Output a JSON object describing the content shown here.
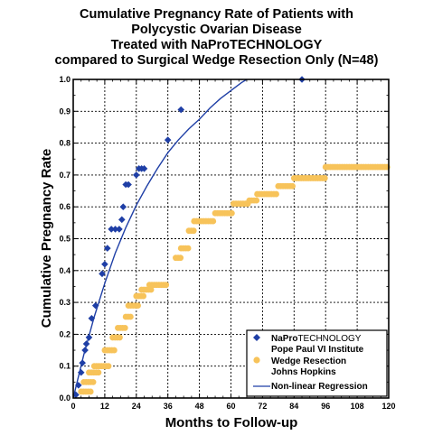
{
  "chart_data": {
    "type": "scatter",
    "title_lines": [
      "Cumulative Pregnancy Rate of Patients with",
      "Polycystic Ovarian Disease",
      "Treated with NaProTECHNOLOGY",
      "compared to Surgical Wedge Resection Only (N=48)"
    ],
    "xlabel": "Months to Follow-up",
    "ylabel": "Cumulative Pregnancy Rate",
    "xlim": [
      0,
      120
    ],
    "ylim": [
      0,
      1.0
    ],
    "x_ticks": [
      0,
      12,
      24,
      36,
      48,
      60,
      72,
      84,
      96,
      108,
      120
    ],
    "y_ticks": [
      0,
      0.1,
      0.2,
      0.3,
      0.4,
      0.5,
      0.6,
      0.7,
      0.8,
      0.9,
      1.0
    ],
    "y_tick_labels": [
      "0.0",
      "0.1",
      "0.2",
      "0.3",
      "0.4",
      "0.5",
      "0.6",
      "0.7",
      "0.8",
      "0.9",
      "1.0"
    ],
    "grid": true,
    "legend_position": "bottom-right",
    "colors": {
      "napro": "#1f3fa6",
      "wedge": "#f7c35a",
      "regression": "#1f3fa6"
    },
    "series": [
      {
        "name_bold": "NaPro",
        "name_rest": "TECHNOLOGY",
        "name_line2": "Pope Paul VI Institute",
        "marker": "diamond",
        "points": [
          [
            1,
            0.01
          ],
          [
            2,
            0.04
          ],
          [
            3,
            0.08
          ],
          [
            3.5,
            0.11
          ],
          [
            4.5,
            0.15
          ],
          [
            5,
            0.17
          ],
          [
            6,
            0.19
          ],
          [
            7,
            0.25
          ],
          [
            8.5,
            0.29
          ],
          [
            11,
            0.39
          ],
          [
            12,
            0.42
          ],
          [
            13,
            0.47
          ],
          [
            14.5,
            0.53
          ],
          [
            16,
            0.53
          ],
          [
            17.5,
            0.53
          ],
          [
            18.5,
            0.56
          ],
          [
            19,
            0.6
          ],
          [
            20,
            0.67
          ],
          [
            21,
            0.67
          ],
          [
            24,
            0.7
          ],
          [
            25,
            0.72
          ],
          [
            26,
            0.72
          ],
          [
            27,
            0.72
          ],
          [
            36,
            0.81
          ],
          [
            41,
            0.905
          ],
          [
            87,
            1.0
          ]
        ]
      },
      {
        "name": "Wedge Resection",
        "name_line2": "Johns Hopkins",
        "marker": "circle",
        "steps": [
          [
            3,
            7,
            0.02
          ],
          [
            4,
            8,
            0.05
          ],
          [
            6,
            10,
            0.08
          ],
          [
            8,
            14,
            0.1
          ],
          [
            12,
            16,
            0.15
          ],
          [
            15,
            18,
            0.19
          ],
          [
            17,
            20,
            0.22
          ],
          [
            20,
            22,
            0.255
          ],
          [
            21,
            25,
            0.29
          ],
          [
            24,
            27,
            0.32
          ],
          [
            26,
            30,
            0.34
          ],
          [
            29,
            36,
            0.355
          ],
          [
            39,
            41,
            0.44
          ],
          [
            41,
            44,
            0.47
          ],
          [
            44,
            46,
            0.525
          ],
          [
            46,
            54,
            0.555
          ],
          [
            54,
            61,
            0.58
          ],
          [
            61,
            67,
            0.61
          ],
          [
            67,
            70,
            0.62
          ],
          [
            70,
            78,
            0.64
          ],
          [
            78,
            84,
            0.665
          ],
          [
            84,
            96,
            0.69
          ],
          [
            96,
            120,
            0.725
          ]
        ]
      },
      {
        "name": "Non-linear Regression",
        "type": "line",
        "curve": [
          [
            0,
            0
          ],
          [
            4,
            0.135
          ],
          [
            8,
            0.255
          ],
          [
            12,
            0.36
          ],
          [
            16,
            0.455
          ],
          [
            20,
            0.535
          ],
          [
            24,
            0.605
          ],
          [
            28,
            0.665
          ],
          [
            32,
            0.72
          ],
          [
            36,
            0.77
          ],
          [
            40,
            0.81
          ],
          [
            44,
            0.845
          ],
          [
            48,
            0.875
          ],
          [
            52,
            0.91
          ],
          [
            56,
            0.94
          ],
          [
            60,
            0.965
          ],
          [
            64,
            0.99
          ],
          [
            66,
            1.0
          ]
        ]
      }
    ]
  }
}
